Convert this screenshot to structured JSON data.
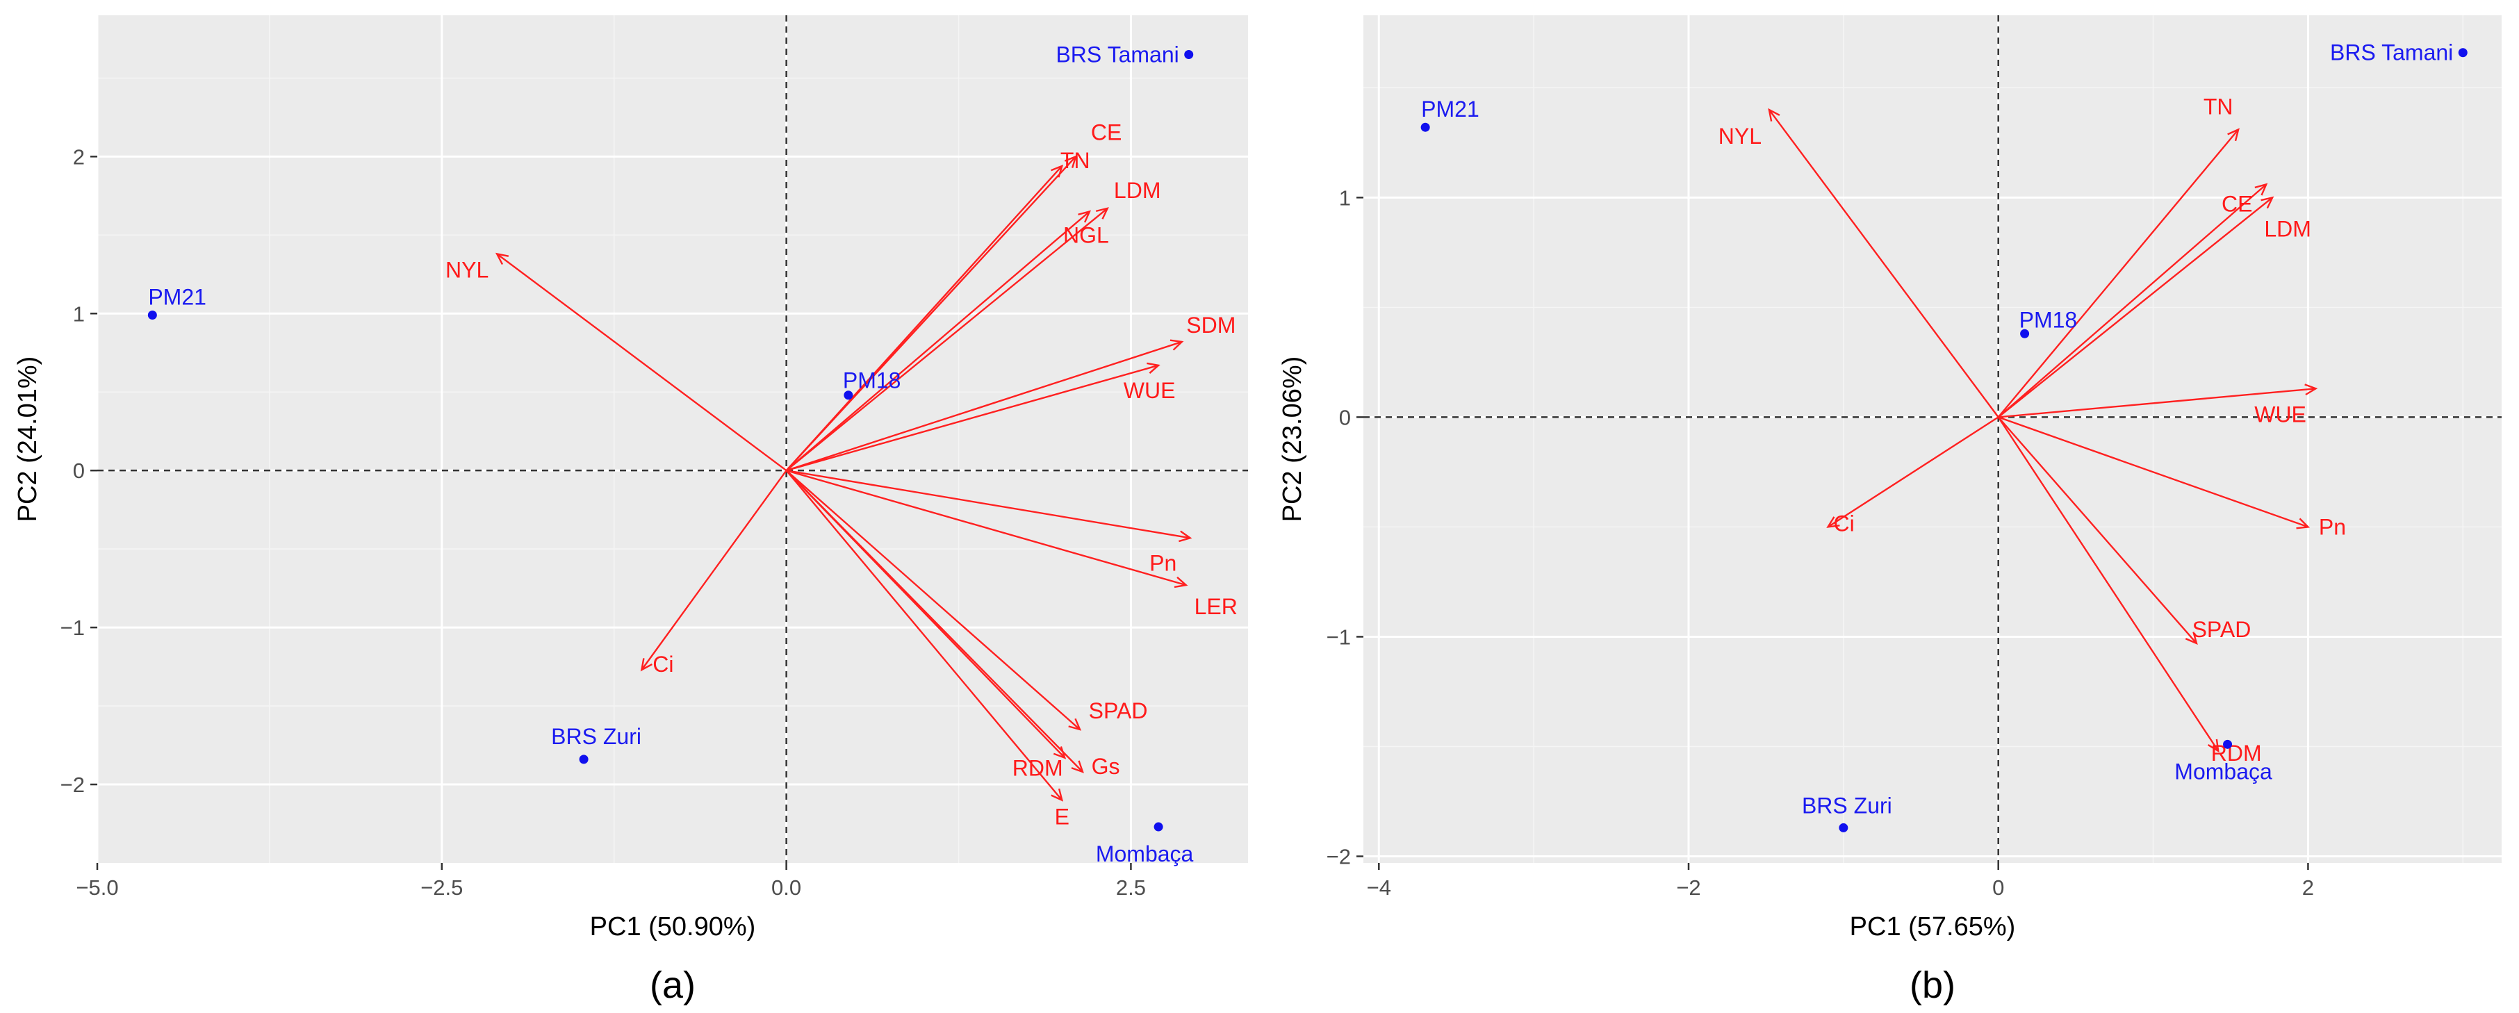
{
  "chart_data": [
    {
      "type": "scatter",
      "subtype": "pca-biplot",
      "caption": "(a)",
      "xlabel": "PC1 (50.90%)",
      "ylabel": "PC2 (24.01%)",
      "xlim": [
        -5.0,
        3.35
      ],
      "ylim": [
        -2.5,
        2.9
      ],
      "x_ticks": [
        -5.0,
        -2.5,
        0.0,
        2.5
      ],
      "x_tick_labels": [
        "−5.0",
        "−2.5",
        "0.0",
        "2.5"
      ],
      "y_ticks": [
        -2,
        -1,
        0,
        1,
        2
      ],
      "y_tick_labels": [
        "−2",
        "−1",
        "0",
        "1",
        "2"
      ],
      "points": [
        {
          "label": "BRS Tamani",
          "x": 2.92,
          "y": 2.65
        },
        {
          "label": "PM21",
          "x": -4.6,
          "y": 0.99
        },
        {
          "label": "PM18",
          "x": 0.45,
          "y": 0.48
        },
        {
          "label": "BRS Zuri",
          "x": -1.47,
          "y": -1.84
        },
        {
          "label": "Mombaça",
          "x": 2.7,
          "y": -2.27
        }
      ],
      "vectors": [
        {
          "label": "CE",
          "x": 2.1,
          "y": 2.0
        },
        {
          "label": "TN",
          "x": 2.0,
          "y": 1.94
        },
        {
          "label": "LDM",
          "x": 2.33,
          "y": 1.67
        },
        {
          "label": "NGL",
          "x": 2.2,
          "y": 1.65
        },
        {
          "label": "SDM",
          "x": 2.87,
          "y": 0.82
        },
        {
          "label": "WUE",
          "x": 2.7,
          "y": 0.67
        },
        {
          "label": "Pn",
          "x": 2.93,
          "y": -0.43
        },
        {
          "label": "LER",
          "x": 2.9,
          "y": -0.73
        },
        {
          "label": "SPAD",
          "x": 2.13,
          "y": -1.65
        },
        {
          "label": "Gs",
          "x": 2.15,
          "y": -1.92
        },
        {
          "label": "RDM",
          "x": 2.02,
          "y": -1.83
        },
        {
          "label": "E",
          "x": 2.0,
          "y": -2.1
        },
        {
          "label": "NYL",
          "x": -2.1,
          "y": 1.38
        },
        {
          "label": "Ci",
          "x": -1.05,
          "y": -1.27
        }
      ]
    },
    {
      "type": "scatter",
      "subtype": "pca-biplot",
      "caption": "(b)",
      "xlabel": "PC1 (57.65%)",
      "ylabel": "PC2 (23.06%)",
      "xlim": [
        -4.1,
        3.25
      ],
      "ylim": [
        -2.03,
        1.83
      ],
      "x_ticks": [
        -4,
        -2,
        0,
        2
      ],
      "x_tick_labels": [
        "−4",
        "−2",
        "0",
        "2"
      ],
      "y_ticks": [
        -2,
        -1,
        0,
        1
      ],
      "y_tick_labels": [
        "−2",
        "−1",
        "0",
        "1"
      ],
      "points": [
        {
          "label": "BRS Tamani",
          "x": 3.0,
          "y": 1.66
        },
        {
          "label": "PM21",
          "x": -3.7,
          "y": 1.32
        },
        {
          "label": "PM18",
          "x": 0.17,
          "y": 0.38
        },
        {
          "label": "BRS Zuri",
          "x": -1.0,
          "y": -1.87
        },
        {
          "label": "Mombaça",
          "x": 1.48,
          "y": -1.49
        }
      ],
      "vectors": [
        {
          "label": "TN",
          "x": 1.55,
          "y": 1.31
        },
        {
          "label": "CE",
          "x": 1.73,
          "y": 1.06
        },
        {
          "label": "LDM",
          "x": 1.77,
          "y": 1.0
        },
        {
          "label": "NYL",
          "x": -1.48,
          "y": 1.4
        },
        {
          "label": "WUE",
          "x": 2.05,
          "y": 0.13
        },
        {
          "label": "Pn",
          "x": 2.0,
          "y": -0.5
        },
        {
          "label": "SPAD",
          "x": 1.28,
          "y": -1.03
        },
        {
          "label": "RDM",
          "x": 1.42,
          "y": -1.52
        },
        {
          "label": "Ci",
          "x": -1.1,
          "y": -0.5
        }
      ]
    }
  ]
}
